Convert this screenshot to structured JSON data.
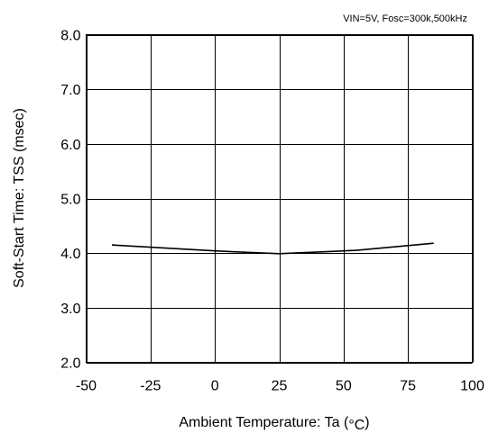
{
  "chart_data": {
    "type": "line",
    "conditions": "VIN=5V, Fosc=300k,500kHz",
    "xlabel": "Ambient Temperature: Ta (",
    "xlabel_unit": "°C",
    "xlabel_close": ")",
    "ylabel": "Soft-Start Time: TSS (msec)",
    "xlim": [
      -50,
      100
    ],
    "ylim": [
      2.0,
      8.0
    ],
    "xticks": [
      -50,
      -25,
      0,
      25,
      50,
      75,
      100
    ],
    "xtick_labels": [
      "-50",
      "-25",
      "0",
      "25",
      "50",
      "75",
      "100"
    ],
    "yticks": [
      2.0,
      3.0,
      4.0,
      5.0,
      6.0,
      7.0,
      8.0
    ],
    "ytick_labels": [
      "2.0",
      "3.0",
      "4.0",
      "5.0",
      "6.0",
      "7.0",
      "8.0"
    ],
    "grid": true,
    "legend": false,
    "series": [
      {
        "x": [
          -40,
          0,
          25,
          55,
          85
        ],
        "y": [
          4.15,
          4.04,
          3.99,
          4.05,
          4.18
        ]
      }
    ]
  }
}
